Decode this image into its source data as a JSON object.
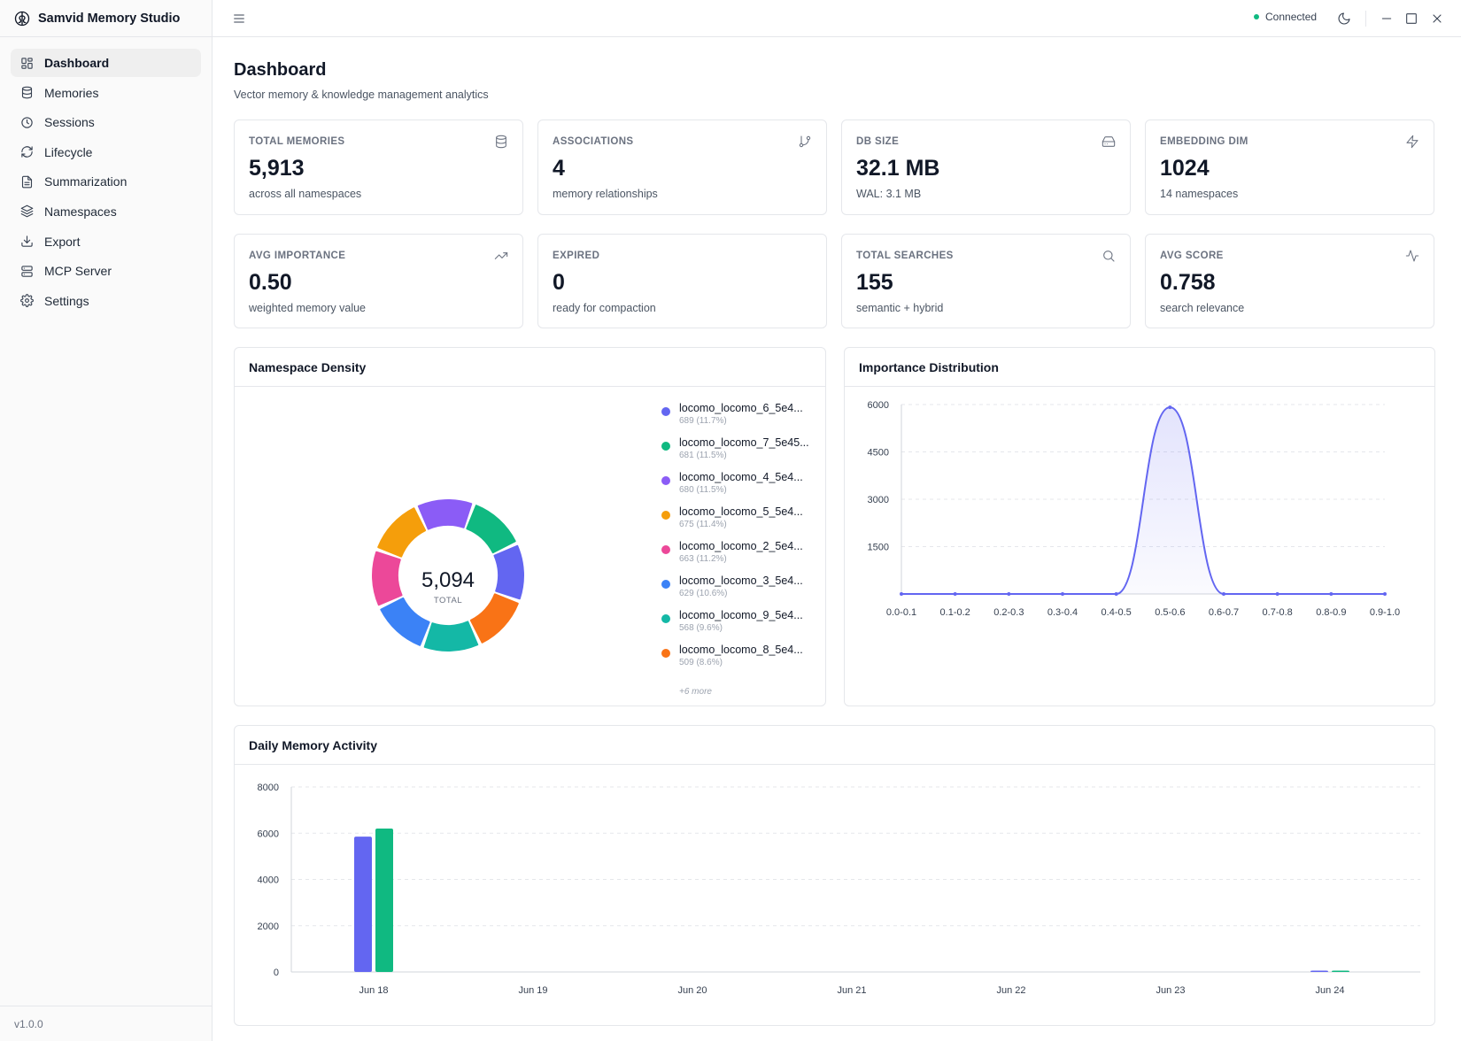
{
  "app": {
    "title": "Samvid Memory Studio",
    "version": "v1.0.0",
    "status": "Connected"
  },
  "sidebar": {
    "items": [
      {
        "label": "Dashboard",
        "icon": "dashboard-icon",
        "active": true
      },
      {
        "label": "Memories",
        "icon": "database-icon"
      },
      {
        "label": "Sessions",
        "icon": "clock-icon"
      },
      {
        "label": "Lifecycle",
        "icon": "refresh-icon"
      },
      {
        "label": "Summarization",
        "icon": "document-icon"
      },
      {
        "label": "Namespaces",
        "icon": "layers-icon"
      },
      {
        "label": "Export",
        "icon": "download-icon"
      },
      {
        "label": "MCP Server",
        "icon": "server-icon"
      },
      {
        "label": "Settings",
        "icon": "gear-icon"
      }
    ]
  },
  "header": {
    "title": "Dashboard",
    "subtitle": "Vector memory & knowledge management analytics"
  },
  "stats": [
    {
      "label": "TOTAL MEMORIES",
      "value": "5,913",
      "desc": "across all namespaces",
      "icon": "database-icon"
    },
    {
      "label": "ASSOCIATIONS",
      "value": "4",
      "desc": "memory relationships",
      "icon": "git-branch-icon"
    },
    {
      "label": "DB SIZE",
      "value": "32.1 MB",
      "desc": "WAL: 3.1 MB",
      "icon": "hard-drive-icon"
    },
    {
      "label": "EMBEDDING DIM",
      "value": "1024",
      "desc": "14 namespaces",
      "icon": "lightning-icon"
    },
    {
      "label": "AVG IMPORTANCE",
      "value": "0.50",
      "desc": "weighted memory value",
      "icon": "trending-up-icon"
    },
    {
      "label": "EXPIRED",
      "value": "0",
      "desc": "ready for compaction",
      "icon": ""
    },
    {
      "label": "TOTAL SEARCHES",
      "value": "155",
      "desc": "semantic + hybrid",
      "icon": "search-icon"
    },
    {
      "label": "AVG SCORE",
      "value": "0.758",
      "desc": "search relevance",
      "icon": "activity-icon"
    }
  ],
  "panels": {
    "namespace_density": "Namespace Density",
    "importance_distribution": "Importance Distribution",
    "daily_activity": "Daily Memory Activity"
  },
  "chart_data": [
    {
      "type": "pie",
      "title": "Namespace Density",
      "center_value": "5,094",
      "center_label": "TOTAL",
      "slices": [
        {
          "label": "locomo_locomo_6_5e4...",
          "meta": "689 (11.7%)",
          "value": 689,
          "color": "#6366f1"
        },
        {
          "label": "locomo_locomo_7_5e45...",
          "meta": "681 (11.5%)",
          "value": 681,
          "color": "#10b981"
        },
        {
          "label": "locomo_locomo_4_5e4...",
          "meta": "680 (11.5%)",
          "value": 680,
          "color": "#8b5cf6"
        },
        {
          "label": "locomo_locomo_5_5e4...",
          "meta": "675 (11.4%)",
          "value": 675,
          "color": "#f59e0b"
        },
        {
          "label": "locomo_locomo_2_5e4...",
          "meta": "663 (11.2%)",
          "value": 663,
          "color": "#ec4899"
        },
        {
          "label": "locomo_locomo_3_5e4...",
          "meta": "629 (10.6%)",
          "value": 629,
          "color": "#3b82f6"
        },
        {
          "label": "locomo_locomo_9_5e4...",
          "meta": "568 (9.6%)",
          "value": 568,
          "color": "#14b8a6"
        },
        {
          "label": "locomo_locomo_8_5e4...",
          "meta": "509 (8.6%)",
          "value": 509,
          "color": "#f97316"
        }
      ],
      "more_label": "+6 more",
      "ring_order": [
        "#8b5cf6",
        "#10b981",
        "#6366f1",
        "#f97316",
        "#14b8a6",
        "#3b82f6",
        "#ec4899",
        "#f59e0b"
      ]
    },
    {
      "type": "area",
      "title": "Importance Distribution",
      "categories": [
        "0.0-0.1",
        "0.1-0.2",
        "0.2-0.3",
        "0.3-0.4",
        "0.4-0.5",
        "0.5-0.6",
        "0.6-0.7",
        "0.7-0.8",
        "0.8-0.9",
        "0.9-1.0"
      ],
      "values": [
        0,
        0,
        0,
        0,
        0,
        5913,
        0,
        0,
        0,
        0
      ],
      "ylim": [
        0,
        6000
      ],
      "yticks": [
        1500,
        3000,
        4500,
        6000
      ],
      "color": "#6366f1",
      "grid": true
    },
    {
      "type": "bar",
      "title": "Daily Memory Activity",
      "categories": [
        "Jun 18",
        "Jun 19",
        "Jun 20",
        "Jun 21",
        "Jun 22",
        "Jun 23",
        "Jun 24"
      ],
      "series": [
        {
          "values": [
            5850,
            0,
            0,
            0,
            0,
            0,
            30
          ],
          "color": "#6366f1"
        },
        {
          "values": [
            6200,
            0,
            0,
            0,
            0,
            0,
            40
          ],
          "color": "#10b981"
        }
      ],
      "ylim": [
        0,
        8000
      ],
      "yticks": [
        0,
        2000,
        4000,
        6000,
        8000
      ],
      "grid": true
    }
  ]
}
